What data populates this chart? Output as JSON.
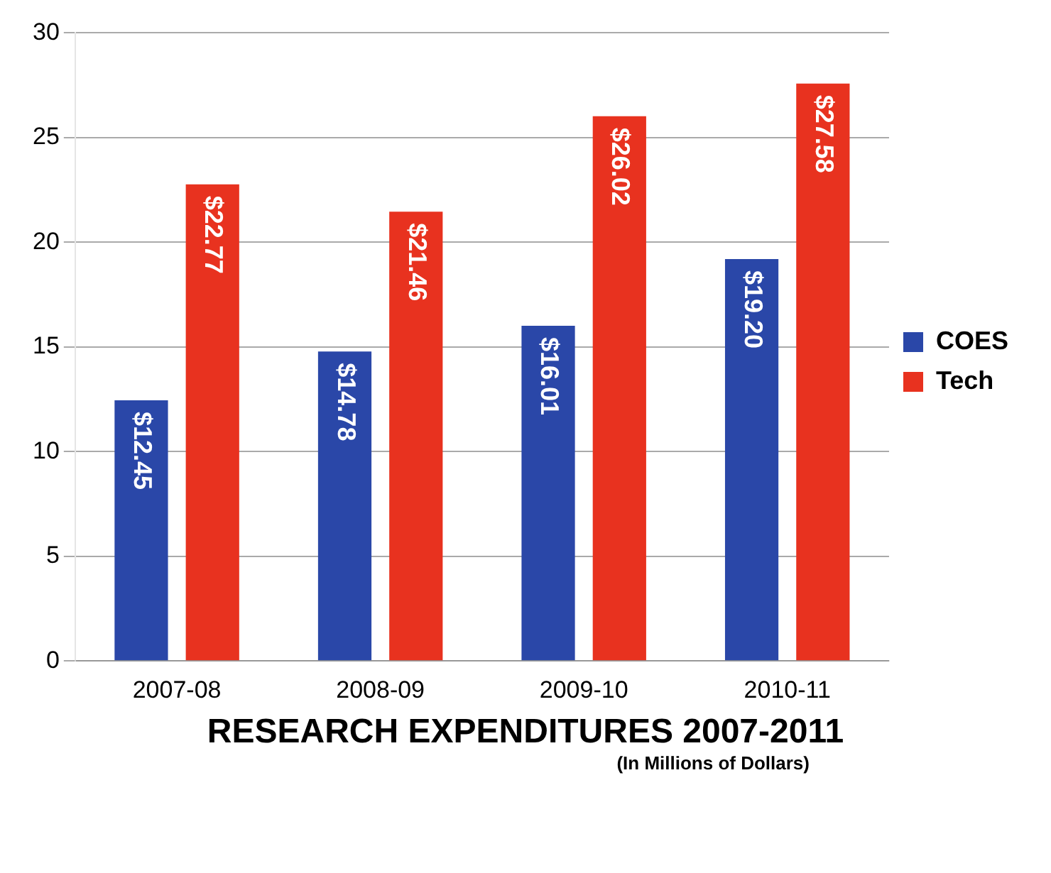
{
  "chart_data": {
    "type": "bar",
    "title": "RESEARCH EXPENDITURES 2007-2011",
    "subtitle": "(In Millions of Dollars)",
    "categories": [
      "2007-08",
      "2008-09",
      "2009-10",
      "2010-11"
    ],
    "series": [
      {
        "name": "COES",
        "color": "#2a47a8",
        "values": [
          12.45,
          14.78,
          16.01,
          19.2
        ],
        "value_labels": [
          "$12.45",
          "$14.78",
          "$16.01",
          "$19.20"
        ]
      },
      {
        "name": "Tech",
        "color": "#e8321f",
        "values": [
          22.77,
          21.46,
          26.02,
          27.58
        ],
        "value_labels": [
          "$22.77",
          "$21.46",
          "$26.02",
          "$27.58"
        ]
      }
    ],
    "ylim": [
      0,
      30
    ],
    "yticks": [
      0,
      5,
      10,
      15,
      20,
      25,
      30
    ],
    "grid": "y",
    "legend": "right"
  }
}
